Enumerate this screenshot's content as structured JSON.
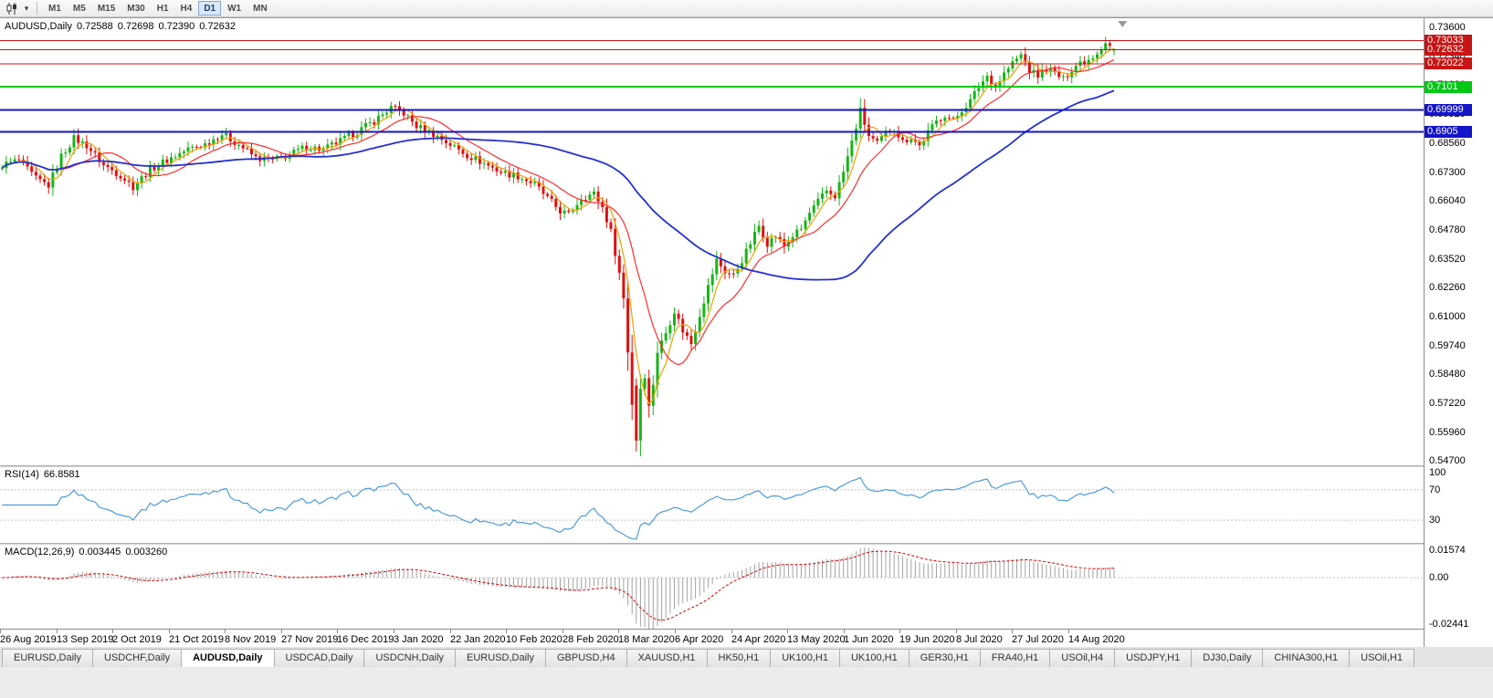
{
  "toolbar": {
    "chart_type_tooltip": "Candlesticks",
    "timeframes": [
      {
        "label": "M1",
        "active": false
      },
      {
        "label": "M5",
        "active": false
      },
      {
        "label": "M15",
        "active": false
      },
      {
        "label": "M30",
        "active": false
      },
      {
        "label": "H1",
        "active": false
      },
      {
        "label": "H4",
        "active": false
      },
      {
        "label": "D1",
        "active": true
      },
      {
        "label": "W1",
        "active": false
      },
      {
        "label": "MN",
        "active": false
      }
    ]
  },
  "main_chart": {
    "header": {
      "symbol": "AUDUSD,Daily",
      "open": "0.72588",
      "high": "0.72698",
      "low": "0.72390",
      "close": "0.72632"
    },
    "scale": {
      "top": 0.74,
      "bottom": 0.5452
    },
    "y_axis": {
      "ticks": [
        "0.73600",
        "0.72340",
        "0.71080",
        "0.69820",
        "0.68560",
        "0.67300",
        "0.66040",
        "0.64780",
        "0.63520",
        "0.62260",
        "0.61000",
        "0.59740",
        "0.58480",
        "0.57220",
        "0.55960",
        "0.54700"
      ]
    },
    "lines": [
      {
        "label": "0.73033",
        "price": 0.73033,
        "color": "#c81414",
        "width": 1
      },
      {
        "label": "0.72632",
        "price": 0.72632,
        "color": "#c81414",
        "width": 1
      },
      {
        "label": "0.72022",
        "price": 0.72022,
        "color": "#c81414",
        "width": 1
      },
      {
        "label": "0.7101",
        "price": 0.7101,
        "color": "#00c814",
        "width": 2
      },
      {
        "label": "0.69999",
        "price": 0.69999,
        "color": "#1414c8",
        "width": 2
      },
      {
        "label": "0.6905",
        "price": 0.6905,
        "color": "#1414c8",
        "width": 2
      }
    ]
  },
  "rsi_panel": {
    "label": "RSI(14)",
    "value": "66.8581",
    "levels": [
      70,
      30
    ],
    "axis_labels": [
      {
        "value": 100,
        "label": "100"
      },
      {
        "value": 70,
        "label": "70"
      },
      {
        "value": 30,
        "label": "30"
      }
    ]
  },
  "macd_panel": {
    "label": "MACD(12,26,9)",
    "value_main": "0.003445",
    "value_signal": "0.003260",
    "range": [
      -0.02441,
      0.01574
    ],
    "axis_labels": [
      {
        "value": 0.01574,
        "label": "0.01574"
      },
      {
        "value": 0,
        "label": "0.00"
      },
      {
        "value": -0.02441,
        "label": "-0.02441"
      }
    ]
  },
  "colors": {
    "up": "#17b517",
    "down": "#e01010",
    "rsi": "#4f9bd8",
    "macd_hist": "#a2a2a2",
    "macd_signal": "#d40000",
    "level_dash": "#c4c4c4"
  },
  "chart_data": {
    "type": "candlestick",
    "symbol": "AUDUSD",
    "timeframe": "Daily",
    "title": "AUDUSD,Daily",
    "current_ohlc": {
      "open": 0.72588,
      "high": 0.72698,
      "low": 0.7239,
      "close": 0.72632
    },
    "y_range_visible": [
      0.5452,
      0.74
    ],
    "horizontal_levels": [
      0.73033,
      0.72632,
      0.72022,
      0.7101,
      0.69999,
      0.6905
    ],
    "bar_count": 264,
    "noise": 0.0016,
    "x_axis_dates": [
      "26 Aug 2019",
      "13 Sep 2019",
      "2 Oct 2019",
      "21 Oct 2019",
      "8 Nov 2019",
      "27 Nov 2019",
      "16 Dec 2019",
      "3 Jan 2020",
      "22 Jan 2020",
      "10 Feb 2020",
      "28 Feb 2020",
      "18 Mar 2020",
      "6 Apr 2020",
      "24 Apr 2020",
      "13 May 2020",
      "1 Jun 2020",
      "19 Jun 2020",
      "8 Jul 2020",
      "27 Jul 2020",
      "14 Aug 2020"
    ],
    "approx_close_path_anchors": [
      [
        0,
        0.676
      ],
      [
        4,
        0.6782
      ],
      [
        8,
        0.67
      ],
      [
        11,
        0.6672
      ],
      [
        14,
        0.68
      ],
      [
        17,
        0.6876
      ],
      [
        20,
        0.6846
      ],
      [
        24,
        0.676
      ],
      [
        28,
        0.6716
      ],
      [
        31,
        0.6666
      ],
      [
        35,
        0.6742
      ],
      [
        39,
        0.6782
      ],
      [
        44,
        0.683
      ],
      [
        48,
        0.6852
      ],
      [
        52,
        0.6896
      ],
      [
        56,
        0.685
      ],
      [
        60,
        0.6792
      ],
      [
        64,
        0.678
      ],
      [
        68,
        0.6806
      ],
      [
        72,
        0.684
      ],
      [
        76,
        0.6828
      ],
      [
        80,
        0.6864
      ],
      [
        84,
        0.6906
      ],
      [
        88,
        0.6952
      ],
      [
        92,
        0.701
      ],
      [
        95,
        0.6986
      ],
      [
        98,
        0.693
      ],
      [
        102,
        0.6896
      ],
      [
        106,
        0.685
      ],
      [
        110,
        0.6804
      ],
      [
        114,
        0.6768
      ],
      [
        118,
        0.673
      ],
      [
        122,
        0.6712
      ],
      [
        126,
        0.6676
      ],
      [
        129,
        0.6616
      ],
      [
        132,
        0.656
      ],
      [
        134,
        0.6544
      ],
      [
        137,
        0.6618
      ],
      [
        140,
        0.6636
      ],
      [
        142,
        0.6576
      ],
      [
        144,
        0.647
      ],
      [
        146,
        0.629
      ],
      [
        147,
        0.618
      ],
      [
        148,
        0.595
      ],
      [
        149,
        0.572
      ],
      [
        150,
        0.556
      ],
      [
        151,
        0.579
      ],
      [
        152,
        0.5846
      ],
      [
        153,
        0.5706
      ],
      [
        154,
        0.581
      ],
      [
        155,
        0.5948
      ],
      [
        157,
        0.603
      ],
      [
        159,
        0.6126
      ],
      [
        161,
        0.604
      ],
      [
        163,
        0.5984
      ],
      [
        165,
        0.611
      ],
      [
        167,
        0.623
      ],
      [
        169,
        0.6346
      ],
      [
        171,
        0.6296
      ],
      [
        173,
        0.628
      ],
      [
        175,
        0.6346
      ],
      [
        177,
        0.642
      ],
      [
        179,
        0.6496
      ],
      [
        181,
        0.642
      ],
      [
        183,
        0.6452
      ],
      [
        185,
        0.6406
      ],
      [
        187,
        0.6452
      ],
      [
        189,
        0.6482
      ],
      [
        191,
        0.655
      ],
      [
        193,
        0.66
      ],
      [
        195,
        0.6648
      ],
      [
        197,
        0.6626
      ],
      [
        199,
        0.673
      ],
      [
        201,
        0.686
      ],
      [
        203,
        0.6996
      ],
      [
        205,
        0.6886
      ],
      [
        207,
        0.6852
      ],
      [
        209,
        0.69
      ],
      [
        211,
        0.692
      ],
      [
        213,
        0.6862
      ],
      [
        215,
        0.6882
      ],
      [
        217,
        0.6844
      ],
      [
        219,
        0.6902
      ],
      [
        221,
        0.695
      ],
      [
        223,
        0.698
      ],
      [
        225,
        0.6952
      ],
      [
        227,
        0.7002
      ],
      [
        229,
        0.704
      ],
      [
        231,
        0.7102
      ],
      [
        233,
        0.715
      ],
      [
        235,
        0.7102
      ],
      [
        237,
        0.716
      ],
      [
        239,
        0.7204
      ],
      [
        241,
        0.724
      ],
      [
        243,
        0.7172
      ],
      [
        245,
        0.715
      ],
      [
        247,
        0.7182
      ],
      [
        249,
        0.7162
      ],
      [
        251,
        0.7132
      ],
      [
        253,
        0.718
      ],
      [
        255,
        0.721
      ],
      [
        257,
        0.7222
      ],
      [
        259,
        0.7252
      ],
      [
        261,
        0.7298
      ],
      [
        263,
        0.72632
      ]
    ],
    "overrides": {
      "150": {
        "o": 0.58,
        "h": 0.583,
        "l": 0.5512,
        "c": 0.556
      },
      "263": {
        "o": 0.72588,
        "h": 0.72698,
        "l": 0.7239,
        "c": 0.72632
      }
    },
    "indicators": {
      "rsi_period": 14,
      "rsi_current": 66.8581,
      "macd_periods": [
        12,
        26,
        9
      ],
      "macd_current": [
        0.003445,
        0.00326
      ],
      "moving_averages": [
        {
          "period": 5,
          "color": "#f0a000",
          "width": 1.2
        },
        {
          "period": 13,
          "color": "#ff2d2d",
          "width": 1.2
        },
        {
          "period": 55,
          "color": "#2431cf",
          "width": 1.8
        }
      ]
    }
  },
  "tab_bar": {
    "tabs": [
      {
        "label": "EURUSD,Daily",
        "active": false
      },
      {
        "label": "USDCHF,Daily",
        "active": false
      },
      {
        "label": "AUDUSD,Daily",
        "active": true
      },
      {
        "label": "USDCAD,Daily",
        "active": false
      },
      {
        "label": "USDCNH,Daily",
        "active": false
      },
      {
        "label": "EURUSD,Daily",
        "active": false
      },
      {
        "label": "GBPUSD,H4",
        "active": false
      },
      {
        "label": "XAUUSD,H1",
        "active": false
      },
      {
        "label": "HK50,H1",
        "active": false
      },
      {
        "label": "UK100,H1",
        "active": false
      },
      {
        "label": "UK100,H1",
        "active": false
      },
      {
        "label": "GER30,H1",
        "active": false
      },
      {
        "label": "FRA40,H1",
        "active": false
      },
      {
        "label": "USOil,H4",
        "active": false
      },
      {
        "label": "USDJPY,H1",
        "active": false
      },
      {
        "label": "DJ30,Daily",
        "active": false
      },
      {
        "label": "CHINA300,H1",
        "active": false
      },
      {
        "label": "USOil,H1",
        "active": false
      }
    ]
  }
}
